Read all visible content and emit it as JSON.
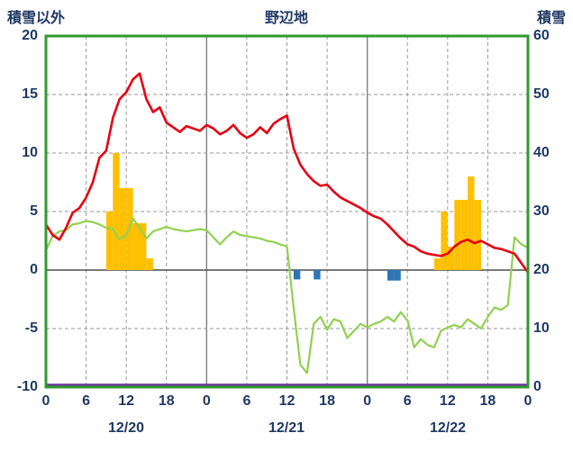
{
  "chart_data": {
    "type": "line",
    "title": "野辺地",
    "left_axis": {
      "label": "積雪以外",
      "min": -10,
      "max": 20,
      "ticks": [
        20,
        15,
        10,
        5,
        0,
        -5,
        -10
      ]
    },
    "right_axis": {
      "label": "積雪",
      "min": 0,
      "max": 60,
      "ticks": [
        60,
        50,
        40,
        30,
        20,
        10,
        0
      ]
    },
    "x_axis": {
      "hours_total": 72,
      "hour_tick_step": 6,
      "hour_labels": [
        "0",
        "6",
        "12",
        "18",
        "0",
        "6",
        "12",
        "18",
        "0",
        "6",
        "12",
        "18",
        "0"
      ],
      "date_labels": [
        "12/20",
        "12/21",
        "12/22"
      ]
    },
    "grid": {
      "vertical_dashed_every_hours": 6,
      "day_separator_solid": true,
      "horizontal_dashed_ticks": [
        15,
        10,
        5,
        -5
      ],
      "zero_line": 0
    },
    "colors": {
      "frame": "#2e9b2e",
      "grid": "#9a9a9a",
      "day_separator": "#7f7f7f",
      "zero_line": "#4d4d4d",
      "text": "#1f3864",
      "background": "#ffffff",
      "red": "#e60012",
      "green": "#92d050",
      "orange": "#ffc000",
      "blue": "#2e75b6",
      "purple": "#7030a0"
    },
    "series": [
      {
        "name": "orange-bars",
        "type": "bar",
        "axis": "left",
        "color": "#ffc000",
        "points": [
          {
            "hour": 9,
            "value": 5
          },
          {
            "hour": 10,
            "value": 10
          },
          {
            "hour": 11,
            "value": 7
          },
          {
            "hour": 12,
            "value": 7
          },
          {
            "hour": 13,
            "value": 4
          },
          {
            "hour": 14,
            "value": 4
          },
          {
            "hour": 15,
            "value": 1
          },
          {
            "hour": 58,
            "value": 1
          },
          {
            "hour": 59,
            "value": 5
          },
          {
            "hour": 60,
            "value": 2
          },
          {
            "hour": 61,
            "value": 6
          },
          {
            "hour": 62,
            "value": 6
          },
          {
            "hour": 63,
            "value": 8
          },
          {
            "hour": 64,
            "value": 6
          }
        ]
      },
      {
        "name": "blue-bars",
        "type": "bar",
        "axis": "left",
        "color": "#2e75b6",
        "points": [
          {
            "hour": 37,
            "value": -0.8
          },
          {
            "hour": 40,
            "value": -0.8
          },
          {
            "hour": 51,
            "value": -0.9
          },
          {
            "hour": 52,
            "value": -0.9
          }
        ]
      },
      {
        "name": "purple-line",
        "type": "line",
        "axis": "right",
        "color": "#7030a0",
        "constant_value": 0
      },
      {
        "name": "green-line",
        "type": "line",
        "axis": "left",
        "color": "#92d050",
        "values_hourly": [
          1.7,
          2.9,
          3.3,
          3.4,
          3.9,
          4.0,
          4.2,
          4.1,
          3.9,
          3.6,
          3.5,
          2.6,
          3.0,
          4.4,
          3.6,
          2.7,
          3.3,
          3.5,
          3.7,
          3.5,
          3.4,
          3.3,
          3.4,
          3.5,
          3.4,
          2.8,
          2.2,
          2.8,
          3.3,
          3.0,
          2.9,
          2.8,
          2.7,
          2.5,
          2.4,
          2.2,
          2.0,
          -3.2,
          -8.1,
          -8.8,
          -4.6,
          -4.0,
          -5.1,
          -4.2,
          -4.4,
          -5.8,
          -5.2,
          -4.6,
          -4.9,
          -4.6,
          -4.4,
          -4.0,
          -4.4,
          -3.6,
          -4.3,
          -6.6,
          -5.9,
          -6.4,
          -6.6,
          -5.2,
          -4.9,
          -4.7,
          -4.9,
          -4.2,
          -4.6,
          -5.0,
          -4.0,
          -3.2,
          -3.4,
          -3.0,
          2.8,
          2.2,
          1.9
        ]
      },
      {
        "name": "red-line",
        "type": "line",
        "axis": "left",
        "color": "#e60012",
        "values_hourly": [
          3.9,
          3.0,
          2.6,
          3.6,
          4.9,
          5.3,
          6.2,
          7.5,
          9.6,
          10.2,
          13.0,
          14.6,
          15.2,
          16.3,
          16.8,
          14.6,
          13.5,
          13.9,
          12.6,
          12.2,
          11.8,
          12.3,
          12.1,
          11.9,
          12.4,
          12.1,
          11.6,
          11.9,
          12.4,
          11.7,
          11.3,
          11.6,
          12.2,
          11.7,
          12.5,
          12.9,
          13.2,
          10.4,
          9.0,
          8.2,
          7.6,
          7.2,
          7.3,
          6.7,
          6.2,
          5.9,
          5.6,
          5.3,
          4.9,
          4.6,
          4.4,
          3.9,
          3.3,
          2.7,
          2.2,
          2.0,
          1.6,
          1.4,
          1.3,
          1.2,
          1.4,
          2.0,
          2.4,
          2.6,
          2.3,
          2.5,
          2.2,
          1.9,
          1.8,
          1.6,
          1.4,
          0.6,
          -0.2
        ]
      }
    ]
  }
}
